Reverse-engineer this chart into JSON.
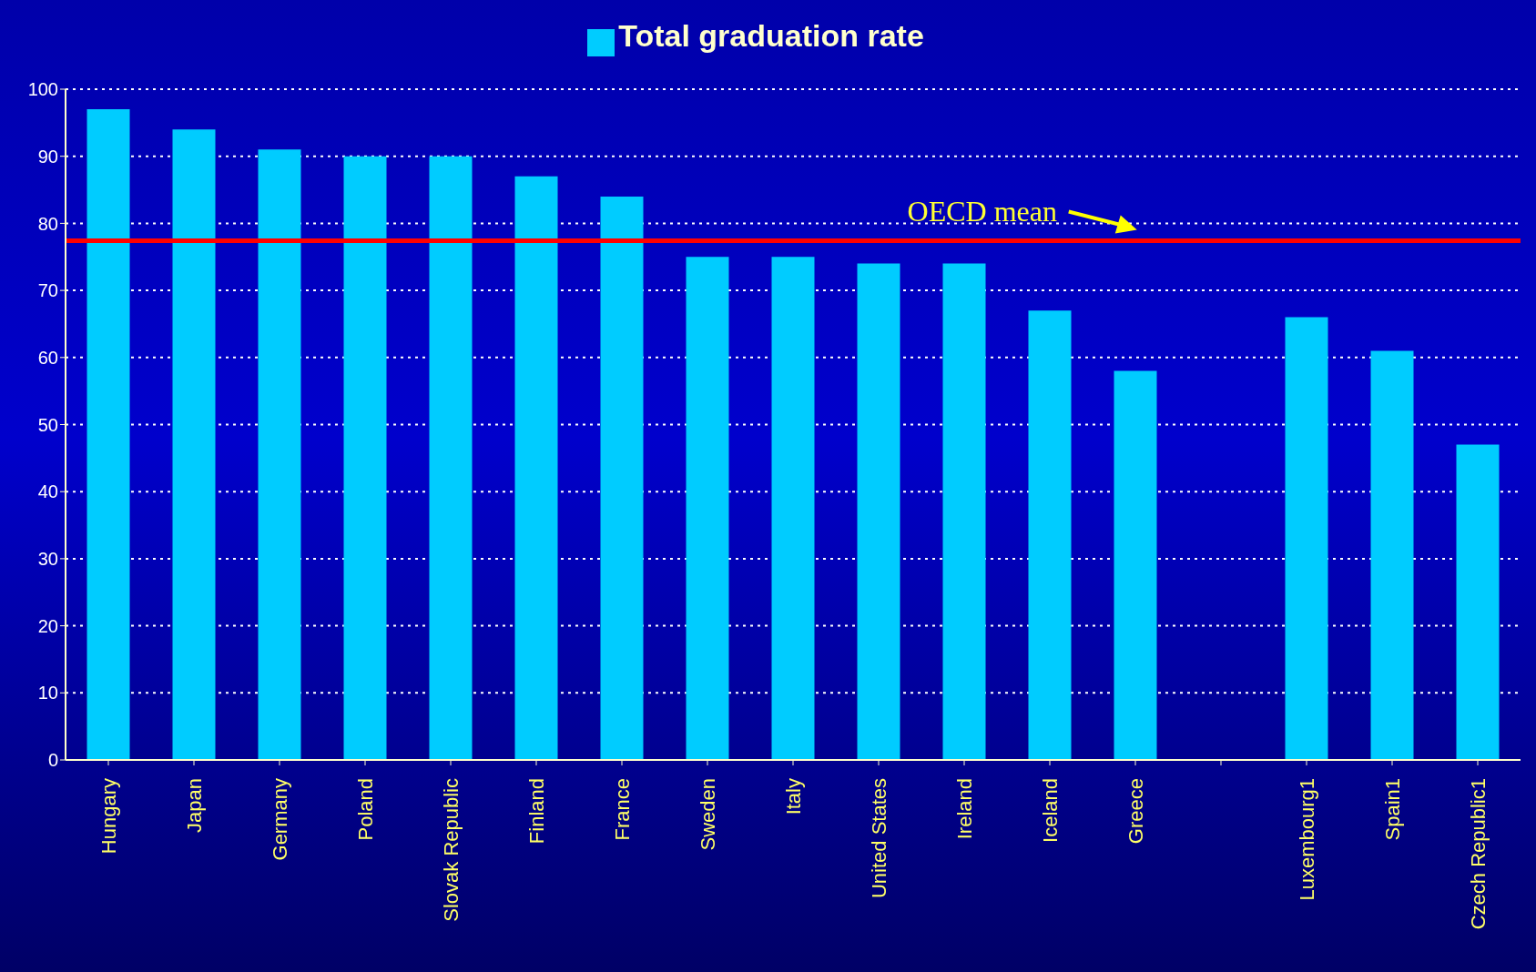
{
  "chart_data": {
    "type": "bar",
    "categories": [
      "Hungary",
      "Japan",
      "Germany",
      "Poland",
      "Slovak Republic",
      "Finland",
      "France",
      "Sweden",
      "Italy",
      "United States",
      "Ireland",
      "Iceland",
      "Greece",
      null,
      "Luxembourg1",
      "Spain1",
      "Czech Republic1"
    ],
    "series": [
      {
        "name": "Total graduation rate",
        "color": "#00ccff",
        "values": [
          97,
          94,
          91,
          90,
          90,
          87,
          84,
          75,
          75,
          74,
          74,
          67,
          58,
          null,
          66,
          61,
          47
        ]
      }
    ],
    "ylim": [
      0,
      100
    ],
    "yticks": [
      0,
      10,
      20,
      30,
      40,
      50,
      60,
      70,
      80,
      90,
      100
    ],
    "grid": "y",
    "legend": "top",
    "ref_lines": [
      {
        "axis": "y",
        "value": 77.4,
        "label": "OECD mean",
        "color": "#ff0000",
        "line_style": "solid"
      }
    ]
  }
}
